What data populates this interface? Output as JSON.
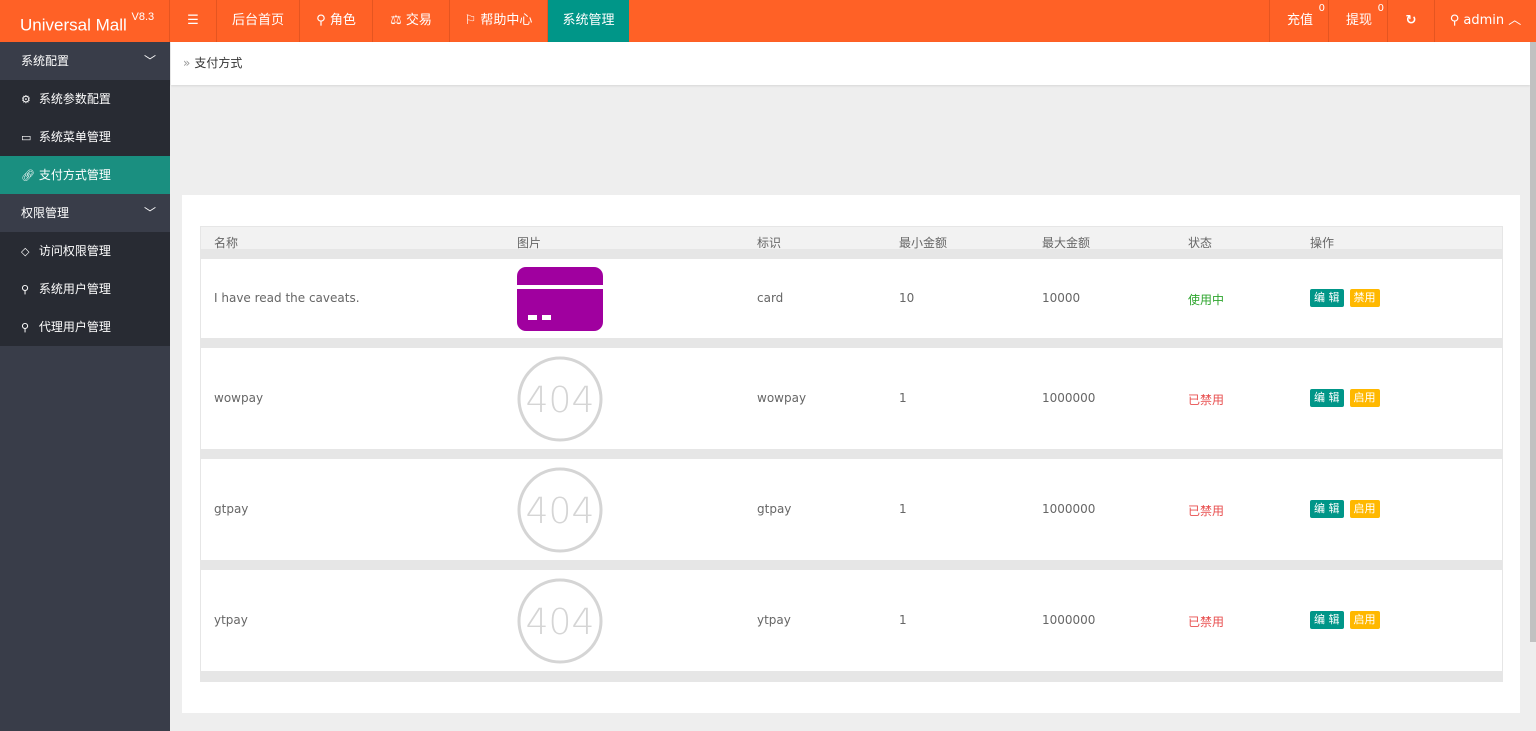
{
  "app": {
    "title": "Universal Mall",
    "version": "V8.3"
  },
  "topnav": {
    "items": [
      "后台首页",
      "角色",
      "交易",
      "帮助中心",
      "系统管理"
    ],
    "recharge": "充值",
    "recharge_count": "0",
    "withdraw": "提现",
    "withdraw_count": "0",
    "user": "admin"
  },
  "sidebar": {
    "groups": [
      {
        "label": "系统配置",
        "items": [
          "系统参数配置",
          "系统菜单管理",
          "支付方式管理"
        ]
      },
      {
        "label": "权限管理",
        "items": [
          "访问权限管理",
          "系统用户管理",
          "代理用户管理"
        ]
      }
    ]
  },
  "breadcrumb": "支付方式",
  "table": {
    "headers": [
      "名称",
      "图片",
      "标识",
      "最小金额",
      "最大金额",
      "状态",
      "操作"
    ],
    "rows": [
      {
        "name": "I have read the caveats.",
        "image": "card",
        "code": "card",
        "min": "10",
        "max": "10000",
        "status": "使用中",
        "edit": "编 辑",
        "toggle": "禁用"
      },
      {
        "name": "wowpay",
        "image": "404",
        "code": "wowpay",
        "min": "1",
        "max": "1000000",
        "status": "已禁用",
        "edit": "编 辑",
        "toggle": "启用"
      },
      {
        "name": "gtpay",
        "image": "404",
        "code": "gtpay",
        "min": "1",
        "max": "1000000",
        "status": "已禁用",
        "edit": "编 辑",
        "toggle": "启用"
      },
      {
        "name": "ytpay",
        "image": "404",
        "code": "ytpay",
        "min": "1",
        "max": "1000000",
        "status": "已禁用",
        "edit": "编 辑",
        "toggle": "启用"
      }
    ]
  },
  "colors": {
    "topbar": "#ff6126",
    "active": "#009688",
    "warn": "#ffb800",
    "card_icon": "#a0009f"
  }
}
